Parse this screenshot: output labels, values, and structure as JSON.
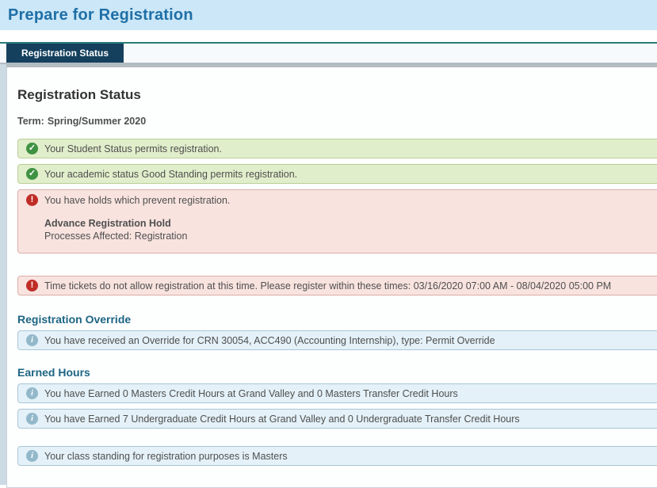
{
  "header": {
    "title": "Prepare for Registration"
  },
  "tabs": {
    "registration_status": "Registration Status"
  },
  "content": {
    "heading": "Registration Status",
    "term": {
      "label": "Term:",
      "value": "Spring/Summer 2020"
    },
    "alerts": {
      "student_status": {
        "type": "success",
        "icon": "check-circle-icon",
        "text": "Your Student Status permits registration."
      },
      "academic_status": {
        "type": "success",
        "icon": "check-circle-icon",
        "text": "Your academic status Good Standing permits registration."
      },
      "holds": {
        "type": "error",
        "icon": "exclamation-circle-icon",
        "text": "You have holds which prevent registration.",
        "hold_name": "Advance Registration Hold",
        "hold_processes": "Processes Affected: Registration"
      },
      "time_tickets": {
        "type": "error",
        "icon": "exclamation-circle-icon",
        "text": "Time tickets do not allow registration at this time. Please register within these times: 03/16/2020 07:00 AM - 08/04/2020 05:00 PM"
      },
      "override": {
        "type": "info",
        "icon": "info-circle-icon",
        "text": "You have received an Override for CRN 30054, ACC490 (Accounting Internship), type: Permit Override"
      },
      "earned_masters": {
        "type": "info",
        "icon": "info-circle-icon",
        "text": "You have Earned 0 Masters Credit Hours at Grand Valley and 0 Masters Transfer Credit Hours"
      },
      "earned_undergraduate": {
        "type": "info",
        "icon": "info-circle-icon",
        "text": "You have Earned 7 Undergraduate Credit Hours at Grand Valley and 0 Undergraduate Transfer Credit Hours"
      },
      "class_standing": {
        "type": "info",
        "icon": "info-circle-icon",
        "text": "Your class standing for registration purposes is Masters"
      }
    },
    "section_headings": {
      "registration_override": "Registration Override",
      "earned_hours": "Earned Hours"
    }
  },
  "icons": {
    "check_circle_glyph": "✓",
    "exclamation_circle_glyph": "!",
    "info_circle_glyph": "i"
  },
  "colors": {
    "header_bg": "#cbe7f8",
    "header_title": "#1f6fa6",
    "accent_teal": "#2a7c7c",
    "tab_bg": "#14405e",
    "tab_text": "#ffffff",
    "panel_top_border": "#b3bcc2",
    "success_bg": "#e1eecb",
    "success_border": "#b9cf97",
    "success_icon": "#3f9243",
    "error_bg": "#f8e3df",
    "error_border": "#dcaea7",
    "error_icon": "#bf2d26",
    "info_bg": "#e4f1f8",
    "info_border": "#a8c6d6",
    "info_icon": "#92b8ca",
    "section_heading": "#1d6583"
  }
}
